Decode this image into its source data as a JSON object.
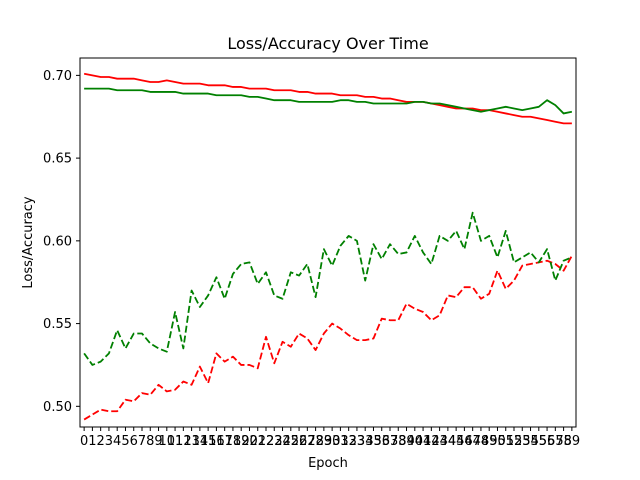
{
  "chart_data": {
    "type": "line",
    "title": "Loss/Accuracy Over Time",
    "xlabel": "Epoch",
    "ylabel": "Loss/Accuracy",
    "x": [
      0,
      1,
      2,
      3,
      4,
      5,
      6,
      7,
      8,
      9,
      10,
      11,
      12,
      13,
      14,
      15,
      16,
      17,
      18,
      19,
      20,
      21,
      22,
      23,
      24,
      25,
      26,
      27,
      28,
      29,
      30,
      31,
      32,
      33,
      34,
      35,
      36,
      37,
      38,
      39,
      40,
      41,
      42,
      43,
      44,
      45,
      46,
      47,
      48,
      49,
      50,
      51,
      52,
      53,
      54,
      55,
      56,
      57,
      58,
      59
    ],
    "xticks": [
      "0",
      "1",
      "2",
      "3",
      "4",
      "5",
      "6",
      "7",
      "8",
      "9",
      "10",
      "11",
      "12",
      "13",
      "14",
      "15",
      "16",
      "17",
      "18",
      "19",
      "20",
      "21",
      "22",
      "23",
      "24",
      "25",
      "26",
      "27",
      "28",
      "29",
      "30",
      "31",
      "32",
      "33",
      "34",
      "35",
      "36",
      "37",
      "38",
      "39",
      "40",
      "41",
      "42",
      "43",
      "44",
      "45",
      "46",
      "47",
      "48",
      "49",
      "50",
      "51",
      "52",
      "53",
      "54",
      "55",
      "56",
      "57",
      "58",
      "59"
    ],
    "yticks": [
      0.5,
      0.55,
      0.6,
      0.65,
      0.7
    ],
    "ytick_labels": [
      "0.50",
      "0.55",
      "0.60",
      "0.65",
      "0.70"
    ],
    "xlim": [
      -0.5,
      59.5
    ],
    "ylim": [
      0.4875,
      0.7105
    ],
    "grid": false,
    "legend": false,
    "series": [
      {
        "color": "#ff0000",
        "linestyle": "solid",
        "values": [
          0.701,
          0.7,
          0.699,
          0.699,
          0.698,
          0.698,
          0.698,
          0.697,
          0.696,
          0.696,
          0.697,
          0.696,
          0.695,
          0.695,
          0.695,
          0.694,
          0.694,
          0.694,
          0.693,
          0.693,
          0.692,
          0.692,
          0.692,
          0.691,
          0.691,
          0.691,
          0.69,
          0.69,
          0.689,
          0.689,
          0.689,
          0.688,
          0.688,
          0.688,
          0.687,
          0.687,
          0.686,
          0.686,
          0.685,
          0.684,
          0.684,
          0.684,
          0.683,
          0.682,
          0.681,
          0.68,
          0.68,
          0.68,
          0.679,
          0.679,
          0.678,
          0.677,
          0.676,
          0.675,
          0.675,
          0.674,
          0.673,
          0.672,
          0.671,
          0.671
        ]
      },
      {
        "color": "#008000",
        "linestyle": "solid",
        "values": [
          0.692,
          0.692,
          0.692,
          0.692,
          0.691,
          0.691,
          0.691,
          0.691,
          0.69,
          0.69,
          0.69,
          0.69,
          0.689,
          0.689,
          0.689,
          0.689,
          0.688,
          0.688,
          0.688,
          0.688,
          0.687,
          0.687,
          0.686,
          0.685,
          0.685,
          0.685,
          0.684,
          0.684,
          0.684,
          0.684,
          0.684,
          0.685,
          0.685,
          0.684,
          0.684,
          0.683,
          0.683,
          0.683,
          0.683,
          0.683,
          0.684,
          0.684,
          0.683,
          0.683,
          0.682,
          0.681,
          0.68,
          0.679,
          0.678,
          0.679,
          0.68,
          0.681,
          0.68,
          0.679,
          0.68,
          0.681,
          0.685,
          0.682,
          0.677,
          0.678
        ]
      },
      {
        "color": "#ff0000",
        "linestyle": "dashed",
        "values": [
          0.492,
          0.495,
          0.498,
          0.497,
          0.497,
          0.504,
          0.503,
          0.508,
          0.507,
          0.513,
          0.509,
          0.51,
          0.515,
          0.513,
          0.524,
          0.514,
          0.532,
          0.527,
          0.53,
          0.525,
          0.525,
          0.523,
          0.542,
          0.526,
          0.539,
          0.536,
          0.544,
          0.541,
          0.534,
          0.544,
          0.55,
          0.547,
          0.543,
          0.54,
          0.54,
          0.541,
          0.553,
          0.552,
          0.552,
          0.562,
          0.559,
          0.557,
          0.552,
          0.555,
          0.567,
          0.566,
          0.572,
          0.572,
          0.565,
          0.568,
          0.582,
          0.571,
          0.576,
          0.585,
          0.586,
          0.587,
          0.588,
          0.586,
          0.582,
          0.591
        ]
      },
      {
        "color": "#008000",
        "linestyle": "dashed",
        "values": [
          0.532,
          0.525,
          0.527,
          0.532,
          0.546,
          0.535,
          0.544,
          0.544,
          0.538,
          0.535,
          0.533,
          0.557,
          0.535,
          0.57,
          0.56,
          0.567,
          0.578,
          0.565,
          0.58,
          0.586,
          0.587,
          0.574,
          0.581,
          0.567,
          0.565,
          0.581,
          0.579,
          0.586,
          0.566,
          0.595,
          0.585,
          0.597,
          0.603,
          0.6,
          0.576,
          0.598,
          0.589,
          0.598,
          0.592,
          0.593,
          0.603,
          0.593,
          0.586,
          0.603,
          0.6,
          0.606,
          0.595,
          0.617,
          0.6,
          0.603,
          0.59,
          0.606,
          0.587,
          0.59,
          0.593,
          0.587,
          0.595,
          0.576,
          0.588,
          0.59
        ]
      }
    ]
  }
}
